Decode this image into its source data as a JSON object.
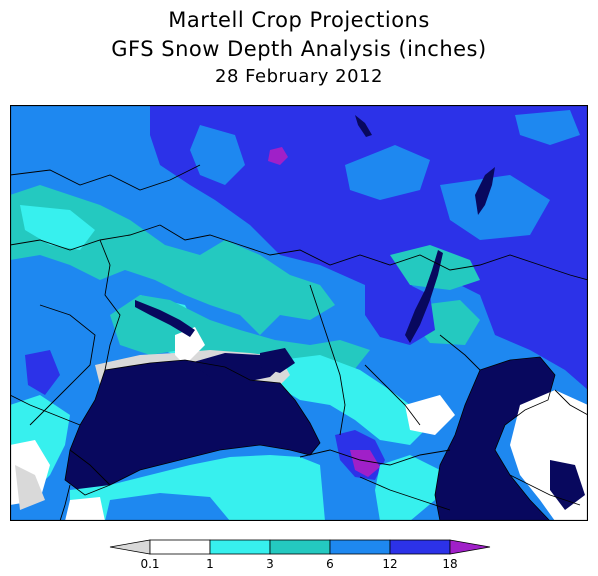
{
  "title": {
    "line1": "Martell Crop Projections",
    "line2": "GFS Snow Depth Analysis (inches)",
    "line3": "28 February 2012"
  },
  "legend": {
    "labels": [
      "0.1",
      "1",
      "3",
      "6",
      "12",
      "18"
    ],
    "colors": [
      "#d9d9d9",
      "#ffffff",
      "#37f0ee",
      "#24c9c0",
      "#1e88f0",
      "#2c32e8",
      "#a020c8"
    ]
  },
  "map_colors": {
    "sea": "#08085e",
    "light_blue": "#1e88f0",
    "royal_blue": "#2c32e8",
    "teal": "#24c9c0",
    "cyan": "#37f0ee",
    "white": "#ffffff",
    "gray": "#d9d9d9",
    "purple": "#a020c8"
  }
}
